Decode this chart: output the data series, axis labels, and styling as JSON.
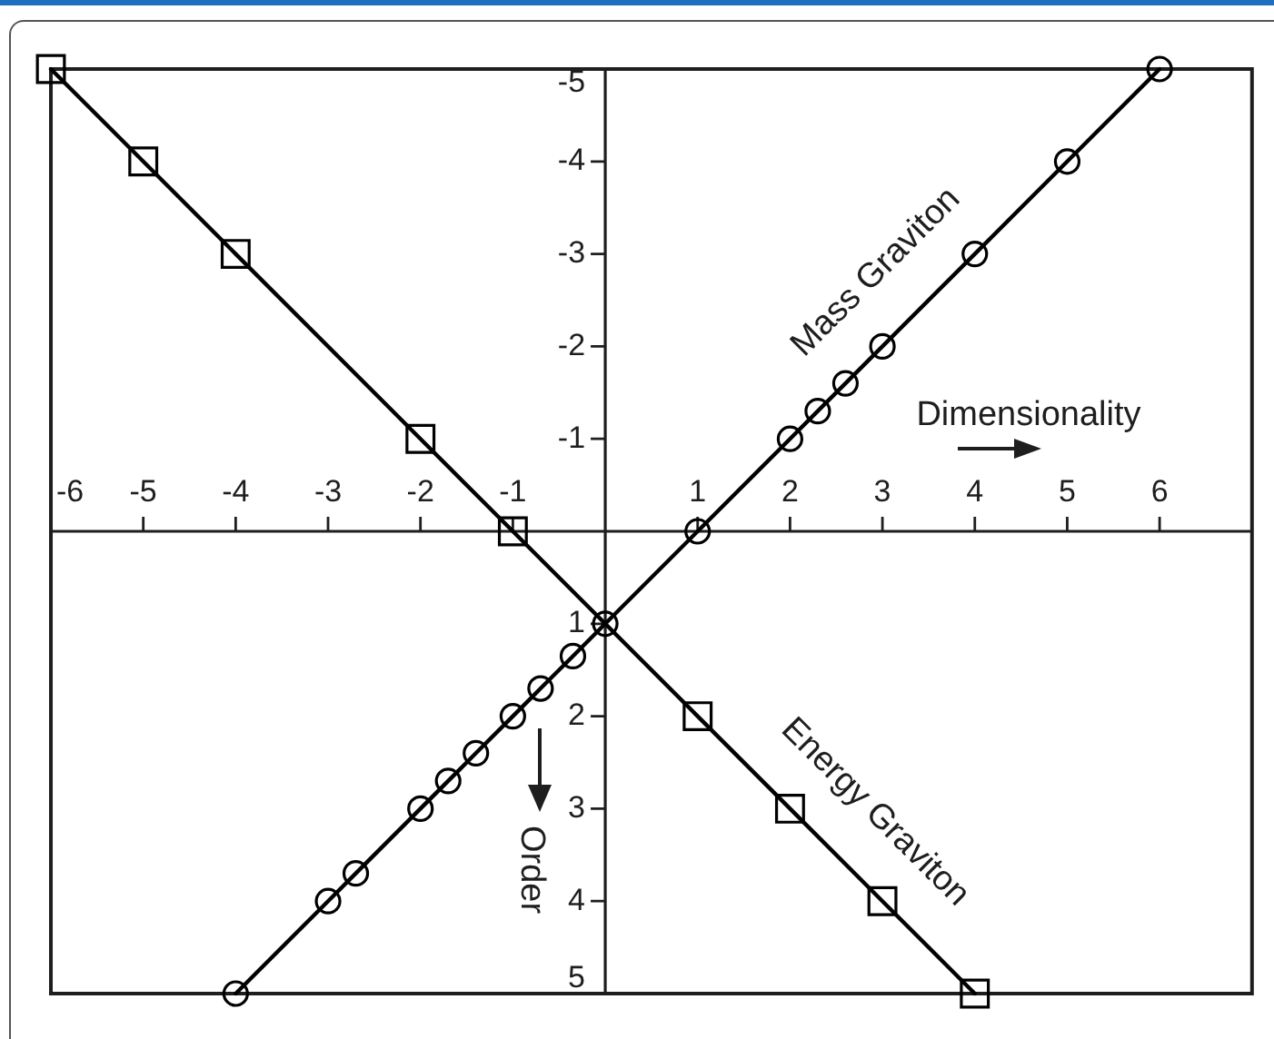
{
  "chart_data": {
    "type": "line",
    "xlabel": "Dimensionality",
    "ylabel": "Order",
    "xlim": [
      -6,
      7
    ],
    "ylim": [
      5,
      -5
    ],
    "xticks": [
      -6,
      -5,
      -4,
      -3,
      -2,
      -1,
      1,
      2,
      3,
      4,
      5,
      6
    ],
    "yticks": [
      -5,
      -4,
      -3,
      -2,
      -1,
      1,
      2,
      3,
      4,
      5
    ],
    "series": [
      {
        "name": "Mass Graviton",
        "color": "#000000",
        "marker": "circle",
        "x": [
          -4,
          -3,
          -2.7,
          -2,
          -1.7,
          -1.4,
          -1,
          -0.7,
          -0.35,
          0,
          1,
          2,
          2.3,
          2.6,
          3,
          4,
          5,
          6
        ],
        "values": [
          5,
          4,
          3.7,
          3,
          2.7,
          2.4,
          2,
          1.7,
          1.35,
          1,
          0,
          -1,
          -1.3,
          -1.6,
          -2,
          -3,
          -4,
          -5
        ]
      },
      {
        "name": "Energy Graviton",
        "color": "#000000",
        "marker": "square",
        "x": [
          -6,
          -5,
          -4,
          -2,
          -1,
          1,
          2,
          3,
          4
        ],
        "values": [
          -5,
          -4,
          -3,
          -1,
          0,
          2,
          3,
          4,
          5
        ]
      }
    ]
  }
}
